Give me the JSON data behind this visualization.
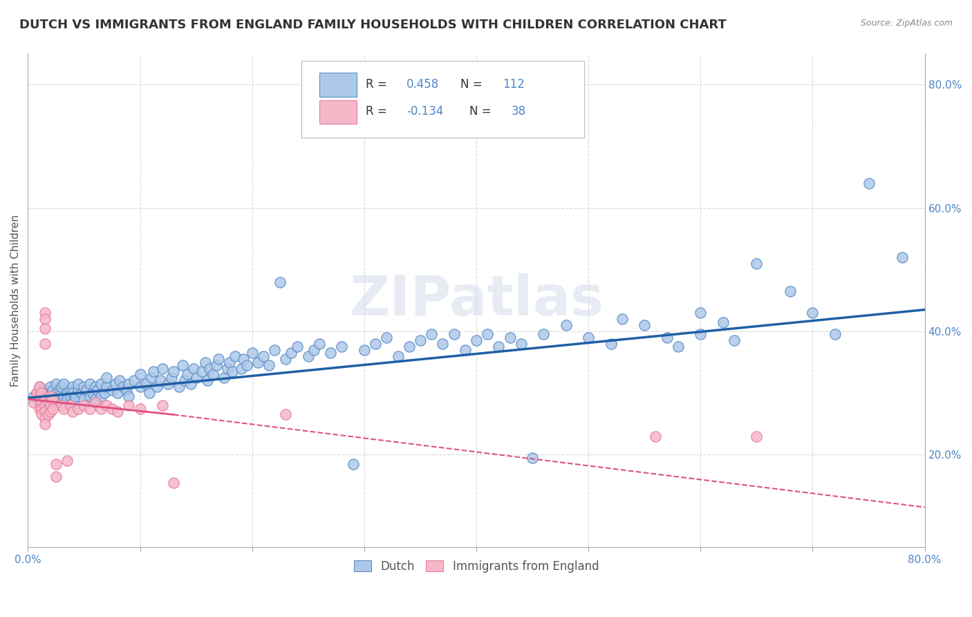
{
  "title": "DUTCH VS IMMIGRANTS FROM ENGLAND FAMILY HOUSEHOLDS WITH CHILDREN CORRELATION CHART",
  "source": "Source: ZipAtlas.com",
  "ylabel": "Family Households with Children",
  "xlim": [
    0.0,
    0.8
  ],
  "ylim": [
    0.05,
    0.85
  ],
  "xticks": [
    0.0,
    0.1,
    0.2,
    0.3,
    0.4,
    0.5,
    0.6,
    0.7,
    0.8
  ],
  "yticks": [
    0.2,
    0.4,
    0.6,
    0.8
  ],
  "ytick_labels": [
    "20.0%",
    "40.0%",
    "60.0%",
    "80.0%"
  ],
  "xtick_labels": [
    "0.0%",
    "",
    "",
    "",
    "",
    "",
    "",
    "",
    "80.0%"
  ],
  "blue_color": "#aec8e8",
  "blue_edge_color": "#5b8fc9",
  "pink_color": "#f5b8c8",
  "pink_edge_color": "#e87fa0",
  "blue_line_color": "#1f5fa6",
  "pink_line_color": "#e05080",
  "blue_scatter": [
    [
      0.005,
      0.295
    ],
    [
      0.008,
      0.3
    ],
    [
      0.01,
      0.285
    ],
    [
      0.01,
      0.31
    ],
    [
      0.012,
      0.295
    ],
    [
      0.012,
      0.305
    ],
    [
      0.015,
      0.29
    ],
    [
      0.015,
      0.3
    ],
    [
      0.018,
      0.285
    ],
    [
      0.018,
      0.295
    ],
    [
      0.02,
      0.3
    ],
    [
      0.02,
      0.31
    ],
    [
      0.02,
      0.285
    ],
    [
      0.022,
      0.295
    ],
    [
      0.022,
      0.305
    ],
    [
      0.025,
      0.3
    ],
    [
      0.025,
      0.29
    ],
    [
      0.025,
      0.315
    ],
    [
      0.028,
      0.295
    ],
    [
      0.028,
      0.305
    ],
    [
      0.03,
      0.285
    ],
    [
      0.03,
      0.3
    ],
    [
      0.03,
      0.31
    ],
    [
      0.032,
      0.295
    ],
    [
      0.032,
      0.315
    ],
    [
      0.035,
      0.3
    ],
    [
      0.035,
      0.29
    ],
    [
      0.038,
      0.305
    ],
    [
      0.038,
      0.295
    ],
    [
      0.04,
      0.31
    ],
    [
      0.04,
      0.285
    ],
    [
      0.04,
      0.3
    ],
    [
      0.042,
      0.295
    ],
    [
      0.045,
      0.305
    ],
    [
      0.045,
      0.315
    ],
    [
      0.048,
      0.3
    ],
    [
      0.05,
      0.31
    ],
    [
      0.05,
      0.29
    ],
    [
      0.052,
      0.305
    ],
    [
      0.055,
      0.295
    ],
    [
      0.055,
      0.315
    ],
    [
      0.058,
      0.3
    ],
    [
      0.06,
      0.31
    ],
    [
      0.06,
      0.29
    ],
    [
      0.062,
      0.305
    ],
    [
      0.065,
      0.295
    ],
    [
      0.065,
      0.315
    ],
    [
      0.068,
      0.3
    ],
    [
      0.07,
      0.31
    ],
    [
      0.07,
      0.325
    ],
    [
      0.075,
      0.305
    ],
    [
      0.078,
      0.315
    ],
    [
      0.08,
      0.3
    ],
    [
      0.082,
      0.32
    ],
    [
      0.085,
      0.31
    ],
    [
      0.088,
      0.305
    ],
    [
      0.09,
      0.315
    ],
    [
      0.09,
      0.295
    ],
    [
      0.095,
      0.32
    ],
    [
      0.1,
      0.31
    ],
    [
      0.1,
      0.33
    ],
    [
      0.105,
      0.315
    ],
    [
      0.108,
      0.3
    ],
    [
      0.11,
      0.325
    ],
    [
      0.112,
      0.335
    ],
    [
      0.115,
      0.31
    ],
    [
      0.118,
      0.32
    ],
    [
      0.12,
      0.34
    ],
    [
      0.125,
      0.315
    ],
    [
      0.128,
      0.325
    ],
    [
      0.13,
      0.335
    ],
    [
      0.135,
      0.31
    ],
    [
      0.138,
      0.345
    ],
    [
      0.14,
      0.32
    ],
    [
      0.142,
      0.33
    ],
    [
      0.145,
      0.315
    ],
    [
      0.148,
      0.34
    ],
    [
      0.15,
      0.325
    ],
    [
      0.155,
      0.335
    ],
    [
      0.158,
      0.35
    ],
    [
      0.16,
      0.32
    ],
    [
      0.162,
      0.34
    ],
    [
      0.165,
      0.33
    ],
    [
      0.168,
      0.345
    ],
    [
      0.17,
      0.355
    ],
    [
      0.175,
      0.325
    ],
    [
      0.178,
      0.34
    ],
    [
      0.18,
      0.35
    ],
    [
      0.182,
      0.335
    ],
    [
      0.185,
      0.36
    ],
    [
      0.19,
      0.34
    ],
    [
      0.192,
      0.355
    ],
    [
      0.195,
      0.345
    ],
    [
      0.2,
      0.365
    ],
    [
      0.205,
      0.35
    ],
    [
      0.21,
      0.36
    ],
    [
      0.215,
      0.345
    ],
    [
      0.22,
      0.37
    ],
    [
      0.225,
      0.48
    ],
    [
      0.23,
      0.355
    ],
    [
      0.235,
      0.365
    ],
    [
      0.24,
      0.375
    ],
    [
      0.25,
      0.36
    ],
    [
      0.255,
      0.37
    ],
    [
      0.26,
      0.38
    ],
    [
      0.27,
      0.365
    ],
    [
      0.28,
      0.375
    ],
    [
      0.29,
      0.185
    ],
    [
      0.3,
      0.37
    ],
    [
      0.31,
      0.38
    ],
    [
      0.32,
      0.39
    ],
    [
      0.33,
      0.36
    ],
    [
      0.34,
      0.375
    ],
    [
      0.35,
      0.385
    ],
    [
      0.36,
      0.395
    ],
    [
      0.37,
      0.38
    ],
    [
      0.38,
      0.395
    ],
    [
      0.39,
      0.37
    ],
    [
      0.4,
      0.385
    ],
    [
      0.41,
      0.395
    ],
    [
      0.42,
      0.375
    ],
    [
      0.43,
      0.39
    ],
    [
      0.44,
      0.38
    ],
    [
      0.45,
      0.195
    ],
    [
      0.46,
      0.395
    ],
    [
      0.48,
      0.41
    ],
    [
      0.5,
      0.39
    ],
    [
      0.52,
      0.38
    ],
    [
      0.53,
      0.42
    ],
    [
      0.55,
      0.41
    ],
    [
      0.57,
      0.39
    ],
    [
      0.58,
      0.375
    ],
    [
      0.6,
      0.395
    ],
    [
      0.6,
      0.43
    ],
    [
      0.62,
      0.415
    ],
    [
      0.63,
      0.385
    ],
    [
      0.65,
      0.51
    ],
    [
      0.68,
      0.465
    ],
    [
      0.7,
      0.43
    ],
    [
      0.72,
      0.395
    ],
    [
      0.75,
      0.64
    ],
    [
      0.78,
      0.52
    ]
  ],
  "pink_scatter": [
    [
      0.005,
      0.285
    ],
    [
      0.008,
      0.3
    ],
    [
      0.01,
      0.29
    ],
    [
      0.01,
      0.275
    ],
    [
      0.01,
      0.295
    ],
    [
      0.01,
      0.31
    ],
    [
      0.012,
      0.285
    ],
    [
      0.012,
      0.275
    ],
    [
      0.012,
      0.3
    ],
    [
      0.012,
      0.265
    ],
    [
      0.015,
      0.29
    ],
    [
      0.015,
      0.28
    ],
    [
      0.015,
      0.27
    ],
    [
      0.015,
      0.26
    ],
    [
      0.015,
      0.25
    ],
    [
      0.015,
      0.43
    ],
    [
      0.015,
      0.42
    ],
    [
      0.015,
      0.405
    ],
    [
      0.015,
      0.38
    ],
    [
      0.018,
      0.285
    ],
    [
      0.018,
      0.265
    ],
    [
      0.02,
      0.295
    ],
    [
      0.02,
      0.28
    ],
    [
      0.02,
      0.27
    ],
    [
      0.022,
      0.29
    ],
    [
      0.022,
      0.275
    ],
    [
      0.025,
      0.185
    ],
    [
      0.025,
      0.165
    ],
    [
      0.03,
      0.28
    ],
    [
      0.032,
      0.275
    ],
    [
      0.035,
      0.19
    ],
    [
      0.038,
      0.28
    ],
    [
      0.04,
      0.27
    ],
    [
      0.045,
      0.275
    ],
    [
      0.05,
      0.28
    ],
    [
      0.055,
      0.275
    ],
    [
      0.06,
      0.285
    ],
    [
      0.065,
      0.275
    ],
    [
      0.07,
      0.28
    ],
    [
      0.075,
      0.275
    ],
    [
      0.08,
      0.27
    ],
    [
      0.09,
      0.28
    ],
    [
      0.1,
      0.275
    ],
    [
      0.12,
      0.28
    ],
    [
      0.13,
      0.155
    ],
    [
      0.23,
      0.265
    ],
    [
      0.56,
      0.23
    ],
    [
      0.65,
      0.23
    ]
  ],
  "blue_trendline": [
    [
      0.0,
      0.292
    ],
    [
      0.8,
      0.435
    ]
  ],
  "pink_trendline_solid": [
    [
      0.0,
      0.29
    ],
    [
      0.13,
      0.265
    ]
  ],
  "pink_trendline_dash": [
    [
      0.13,
      0.265
    ],
    [
      0.8,
      0.115
    ]
  ],
  "background_color": "#ffffff",
  "grid_color": "#cccccc",
  "watermark": "ZIPatlas",
  "title_fontsize": 13,
  "axis_label_fontsize": 11,
  "tick_fontsize": 11,
  "right_tick_color": "#4d86c8",
  "bottom_legend": [
    "Dutch",
    "Immigrants from England"
  ]
}
